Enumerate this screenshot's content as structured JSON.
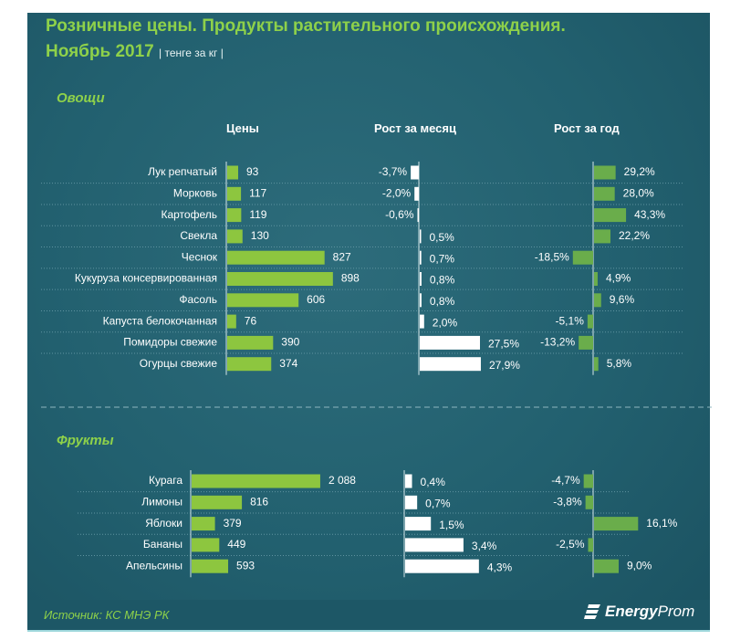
{
  "title_line1": "Розничные  цены. Продукты растительного  происхождения.",
  "title_line2": "Ноябрь 2017",
  "unit": "| тенге за кг |",
  "columns": {
    "price": "Цены",
    "month": "Рост за месяц",
    "year": "Рост за год"
  },
  "source": "Источник: КС МНЭ РК",
  "logo": "EnergyProm",
  "colors": {
    "price_bar": "#8dc63f",
    "month_bar": "#ffffff",
    "year_bar": "#6aad4b",
    "title": "#8ed14a",
    "background": "#22606f"
  },
  "chart_data": [
    {
      "type": "bar",
      "section": "Овощи",
      "categories": [
        "Лук репчатый",
        "Морковь",
        "Картофель",
        "Свекла",
        "Чеснок",
        "Кукуруза консервированная",
        "Фасоль",
        "Капуста белокочанная",
        "Помидоры свежие",
        "Огурцы свежие"
      ],
      "price": [
        93,
        117,
        119,
        130,
        827,
        898,
        606,
        76,
        390,
        374
      ],
      "price_labels": [
        "93",
        "117",
        "119",
        "130",
        "827",
        "898",
        "606",
        "76",
        "390",
        "374"
      ],
      "month_growth_pct": [
        -3.7,
        -2.0,
        -0.6,
        0.5,
        0.7,
        0.8,
        0.8,
        2.0,
        27.5,
        27.9
      ],
      "month_labels": [
        "-3,7%",
        "-2,0%",
        "-0,6%",
        "0,5%",
        "0,7%",
        "0,8%",
        "0,8%",
        "2,0%",
        "27,5%",
        "27,9%"
      ],
      "year_growth_pct": [
        29.2,
        28.0,
        43.3,
        22.2,
        -18.5,
        4.9,
        9.6,
        -5.1,
        -13.2,
        5.8
      ],
      "year_labels": [
        "29,2%",
        "28,0%",
        "43,3%",
        "22,2%",
        "-18,5%",
        "4,9%",
        "9,6%",
        "-5,1%",
        "-13,2%",
        "5,8%"
      ]
    },
    {
      "type": "bar",
      "section": "Фрукты",
      "categories": [
        "Курага",
        "Лимоны",
        "Яблоки",
        "Бананы",
        "Апельсины"
      ],
      "price": [
        2088,
        816,
        379,
        449,
        593
      ],
      "price_labels": [
        "2 088",
        "816",
        "379",
        "449",
        "593"
      ],
      "month_growth_pct": [
        0.4,
        0.7,
        1.5,
        3.4,
        4.3
      ],
      "month_labels": [
        "0,4%",
        "0,7%",
        "1,5%",
        "3,4%",
        "4,3%"
      ],
      "year_growth_pct": [
        -4.7,
        -3.8,
        16.1,
        -2.5,
        9.0
      ],
      "year_labels": [
        "-4,7%",
        "-3,8%",
        "16,1%",
        "-2,5%",
        "9,0%"
      ]
    }
  ]
}
